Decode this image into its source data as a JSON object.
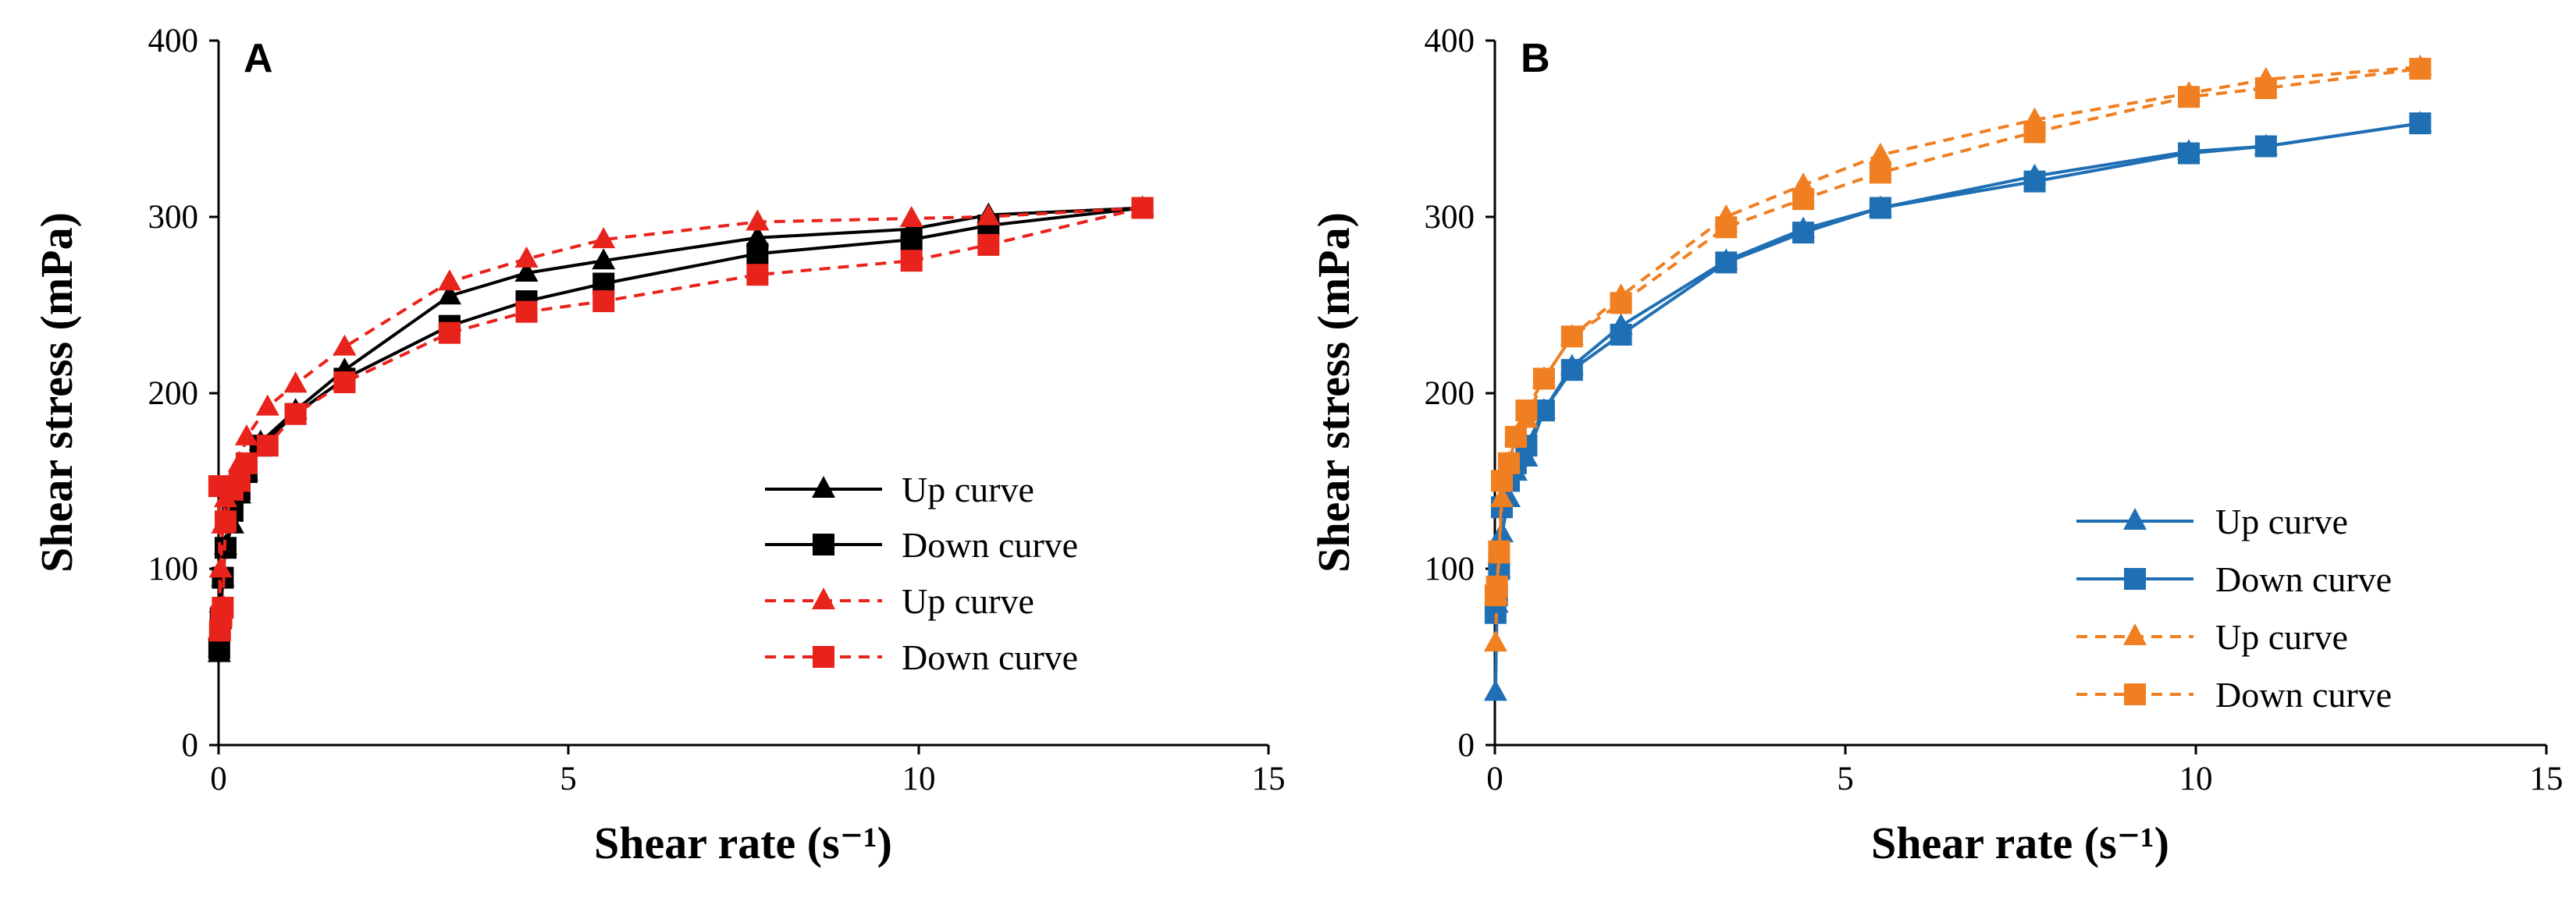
{
  "chart_data": [
    {
      "type": "line",
      "panel_label": "A",
      "xlabel": "Shear rate (s⁻¹)",
      "ylabel": "Shear stress (mPa)",
      "xlim": [
        0,
        15
      ],
      "ylim": [
        0,
        400
      ],
      "x_ticks": [
        "0",
        "5",
        "10",
        "15"
      ],
      "y_ticks": [
        "0",
        "100",
        "200",
        "300",
        "400"
      ],
      "legend_position": "right-middle",
      "series": [
        {
          "name": "Up curve",
          "color": "#000000",
          "dash": "solid",
          "marker": "triangle",
          "x": [
            0.01,
            0.03,
            0.06,
            0.1,
            0.2,
            0.3,
            0.4,
            0.6,
            1.1,
            1.8,
            3.3,
            4.4,
            5.5,
            7.7,
            9.9,
            11.0,
            13.2
          ],
          "y": [
            52,
            80,
            95,
            113,
            125,
            142,
            155,
            172,
            190,
            213,
            255,
            268,
            275,
            288,
            293,
            301,
            305
          ]
        },
        {
          "name": "Down curve",
          "color": "#000000",
          "dash": "solid",
          "marker": "square",
          "x": [
            0.01,
            0.03,
            0.06,
            0.1,
            0.2,
            0.3,
            0.4,
            0.6,
            1.1,
            1.8,
            3.3,
            4.4,
            5.5,
            7.7,
            9.9,
            11.0,
            13.2
          ],
          "y": [
            55,
            72,
            95,
            112,
            133,
            145,
            155,
            170,
            188,
            208,
            238,
            252,
            262,
            279,
            287,
            295,
            305
          ]
        },
        {
          "name": "Up curve",
          "color": "#e8231c",
          "dash": "dashed",
          "marker": "triangle",
          "x": [
            0.01,
            0.03,
            0.06,
            0.1,
            0.2,
            0.3,
            0.4,
            0.7,
            1.1,
            1.8,
            3.3,
            4.4,
            5.5,
            7.7,
            9.9,
            11.0,
            13.2
          ],
          "y": [
            65,
            100,
            125,
            140,
            150,
            160,
            175,
            192,
            205,
            226,
            263,
            276,
            287,
            297,
            299,
            300,
            305
          ]
        },
        {
          "name": "Down curve",
          "color": "#e8231c",
          "dash": "dashed",
          "marker": "square",
          "x": [
            0.01,
            0.02,
            0.04,
            0.06,
            0.1,
            0.2,
            0.3,
            0.4,
            0.7,
            1.1,
            1.8,
            3.3,
            4.4,
            5.5,
            7.7,
            9.9,
            11.0,
            13.2
          ],
          "y": [
            147,
            65,
            73,
            78,
            127,
            145,
            150,
            160,
            170,
            188,
            206,
            234,
            246,
            252,
            267,
            275,
            284,
            305
          ]
        }
      ]
    },
    {
      "type": "line",
      "panel_label": "B",
      "xlabel": "Shear rate (s⁻¹)",
      "ylabel": "Shear stress (mPa)",
      "xlim": [
        0,
        15
      ],
      "ylim": [
        0,
        400
      ],
      "x_ticks": [
        "0",
        "5",
        "10",
        "15"
      ],
      "y_ticks": [
        "0",
        "100",
        "200",
        "300",
        "400"
      ],
      "legend_position": "bottom-right",
      "series": [
        {
          "name": "Up curve",
          "color": "#1f6fb4",
          "dash": "solid",
          "marker": "triangle",
          "x": [
            0.01,
            0.03,
            0.06,
            0.1,
            0.2,
            0.3,
            0.45,
            0.7,
            1.1,
            1.8,
            3.3,
            4.4,
            5.5,
            7.7,
            9.9,
            11.0,
            13.2
          ],
          "y": [
            30,
            80,
            100,
            120,
            140,
            155,
            163,
            190,
            215,
            238,
            275,
            293,
            305,
            323,
            337,
            340,
            353
          ]
        },
        {
          "name": "Down curve",
          "color": "#1f6fb4",
          "dash": "solid",
          "marker": "square",
          "x": [
            0.01,
            0.03,
            0.06,
            0.1,
            0.2,
            0.3,
            0.45,
            0.7,
            1.1,
            1.8,
            3.3,
            4.4,
            5.5,
            7.7,
            9.9,
            11.0,
            13.2
          ],
          "y": [
            75,
            85,
            100,
            135,
            150,
            160,
            170,
            190,
            213,
            233,
            274,
            291,
            305,
            320,
            336,
            340,
            353
          ]
        },
        {
          "name": "Up curve",
          "color": "#f07f21",
          "dash": "dashed",
          "marker": "triangle",
          "x": [
            0.01,
            0.03,
            0.06,
            0.1,
            0.2,
            0.3,
            0.45,
            0.7,
            1.1,
            1.8,
            3.3,
            4.4,
            5.5,
            7.7,
            9.9,
            11.0,
            13.2
          ],
          "y": [
            58,
            85,
            108,
            140,
            160,
            175,
            185,
            208,
            232,
            255,
            300,
            318,
            335,
            355,
            370,
            378,
            385
          ]
        },
        {
          "name": "Down curve",
          "color": "#f07f21",
          "dash": "dashed",
          "marker": "square",
          "x": [
            0.01,
            0.03,
            0.06,
            0.1,
            0.2,
            0.3,
            0.45,
            0.7,
            1.1,
            1.8,
            3.3,
            4.4,
            5.5,
            7.7,
            9.9,
            11.0,
            13.2
          ],
          "y": [
            85,
            90,
            110,
            150,
            160,
            175,
            190,
            208,
            232,
            251,
            294,
            310,
            325,
            348,
            368,
            373,
            384
          ]
        }
      ]
    }
  ]
}
